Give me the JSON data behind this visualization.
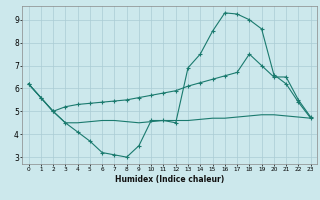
{
  "xlabel": "Humidex (Indice chaleur)",
  "background_color": "#cce8ec",
  "grid_color": "#aaccd4",
  "line_color": "#1a7a6e",
  "xlim": [
    -0.5,
    23.5
  ],
  "ylim": [
    2.7,
    9.6
  ],
  "xticks": [
    0,
    1,
    2,
    3,
    4,
    5,
    6,
    7,
    8,
    9,
    10,
    11,
    12,
    13,
    14,
    15,
    16,
    17,
    18,
    19,
    20,
    21,
    22,
    23
  ],
  "yticks": [
    3,
    4,
    5,
    6,
    7,
    8,
    9
  ],
  "line1_x": [
    0,
    1,
    2,
    3,
    4,
    5,
    6,
    7,
    8,
    9,
    10,
    11,
    12,
    13,
    14,
    15,
    16,
    17,
    18,
    19,
    20,
    21,
    22,
    23
  ],
  "line1_y": [
    6.2,
    5.6,
    5.0,
    4.5,
    4.1,
    3.7,
    3.2,
    3.1,
    3.0,
    3.5,
    4.6,
    4.6,
    4.5,
    6.9,
    7.5,
    8.5,
    9.3,
    9.25,
    9.0,
    8.6,
    6.6,
    6.2,
    5.4,
    4.7
  ],
  "line2_x": [
    0,
    1,
    2,
    3,
    4,
    5,
    6,
    7,
    8,
    9,
    10,
    11,
    12,
    13,
    14,
    15,
    16,
    17,
    18,
    19,
    20,
    21,
    22,
    23
  ],
  "line2_y": [
    6.2,
    5.6,
    5.0,
    5.2,
    5.3,
    5.35,
    5.4,
    5.45,
    5.5,
    5.6,
    5.7,
    5.8,
    5.9,
    6.1,
    6.25,
    6.4,
    6.55,
    6.7,
    7.5,
    7.0,
    6.5,
    6.5,
    5.5,
    4.75
  ],
  "line3_x": [
    0,
    2,
    3,
    4,
    5,
    6,
    7,
    8,
    9,
    10,
    11,
    12,
    13,
    14,
    15,
    16,
    17,
    18,
    19,
    20,
    21,
    22,
    23
  ],
  "line3_y": [
    6.2,
    5.0,
    4.5,
    4.5,
    4.55,
    4.6,
    4.6,
    4.55,
    4.5,
    4.55,
    4.6,
    4.6,
    4.6,
    4.65,
    4.7,
    4.7,
    4.75,
    4.8,
    4.85,
    4.85,
    4.8,
    4.75,
    4.7
  ]
}
